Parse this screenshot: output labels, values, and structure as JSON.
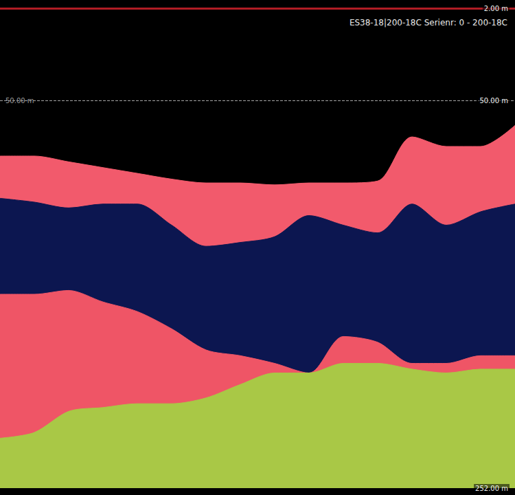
{
  "chart_data": {
    "type": "area",
    "title": "ES38-18|200-18C Serienr: 0 - 200-18C",
    "x": [
      0,
      50,
      100,
      150,
      200,
      250,
      300,
      350,
      400,
      450,
      500,
      550,
      600,
      650,
      700,
      750
    ],
    "xlim": [
      0,
      750
    ],
    "ylim": [
      2,
      252
    ],
    "yticks": [
      {
        "value": 50,
        "label": "50.00 m"
      }
    ],
    "y2lim": [
      2,
      252
    ],
    "y2ticks": [
      {
        "value": 2,
        "label": "2.00 m"
      },
      {
        "value": 50,
        "label": "50.00 m"
      },
      {
        "value": 252,
        "label": "252.00 m"
      }
    ],
    "grid": true,
    "tick_labels": "y",
    "series": [
      {
        "color": "#f25a6c",
        "values": [
          79,
          79,
          82,
          85,
          88,
          91,
          93,
          93,
          94,
          93,
          93,
          92,
          69,
          74,
          74,
          63
        ]
      },
      {
        "color": "#0c1650",
        "values": [
          101,
          103,
          106,
          104,
          104,
          115,
          126,
          124,
          121,
          110,
          115,
          119,
          104,
          115,
          108,
          104
        ]
      },
      {
        "color": "#ef5566",
        "values": [
          151,
          151,
          149,
          155,
          160,
          169,
          180,
          183,
          187,
          192,
          173,
          176,
          187,
          187,
          183,
          183
        ]
      },
      {
        "color": "#a9c846",
        "values": [
          226,
          223,
          212,
          210,
          208,
          208,
          205,
          198,
          192,
          192,
          187,
          187,
          190,
          192,
          190,
          190
        ]
      }
    ]
  }
}
